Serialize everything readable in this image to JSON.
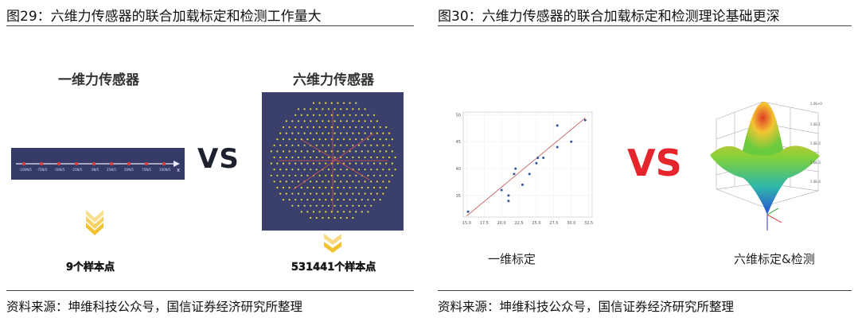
{
  "figure29": {
    "title": "图29：六维力传感器的联合加载标定和检测工作量大",
    "source": "资料来源：坤维科技公众号，国信证券经济研究所整理",
    "left_label": "一维力传感器",
    "right_label": "六维力传感器",
    "vs": "VS",
    "left_count": "9个样本点",
    "right_count": "531441个样本点",
    "axis_letter": "x",
    "colors": {
      "sensor_bg": "#353a66",
      "point": "#e8e040",
      "arrow": "#f2c230"
    }
  },
  "figure30": {
    "title": "图30：六维力传感器的联合加载标定和检测理论基础更深",
    "source": "资料来源：坤维科技公众号，国信证券经济研究所整理",
    "vs": "VS",
    "left_caption": "一维标定",
    "right_caption": "六维标定&检测",
    "colors": {
      "vs": "#e5242b",
      "fit_line": "#c0504d",
      "points": "#2f5597"
    }
  },
  "chart_data": {
    "type": "scatter",
    "x": [
      15.2,
      20.0,
      21.0,
      21.0,
      21.8,
      22.0,
      23.0,
      24.0,
      25.0,
      25.2,
      26.0,
      28.0,
      28.0,
      30.0,
      32.0
    ],
    "y": [
      32,
      36,
      35,
      34,
      39,
      40,
      37,
      39,
      41,
      42,
      42,
      44,
      48,
      45,
      49
    ],
    "xticks": [
      "15.0",
      "17.5",
      "20.0",
      "22.5",
      "25.0",
      "27.5",
      "30.0",
      "32.5"
    ],
    "yticks": [
      "50",
      "45",
      "40",
      "35"
    ],
    "xlim": [
      14.5,
      33
    ],
    "ylim": [
      31,
      50.5
    ],
    "fit_line": {
      "x": [
        15.0,
        32.0
      ],
      "y": [
        31.2,
        49.4
      ]
    },
    "grid": true
  }
}
